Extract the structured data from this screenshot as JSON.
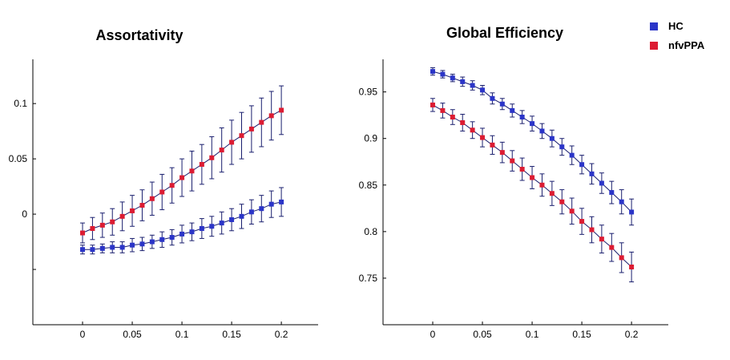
{
  "legend": [
    {
      "label": "HC",
      "color": "#2b35c8"
    },
    {
      "label": "nfvPPA",
      "color": "#dc1c32"
    }
  ],
  "chart_data": [
    {
      "type": "line",
      "title": "Assortativity",
      "xlabel": "",
      "ylabel": "",
      "xlim": [
        -0.05,
        0.237
      ],
      "ylim": [
        -0.1,
        0.14
      ],
      "x_ticks": [
        0,
        0.05,
        0.1,
        0.15,
        0.2
      ],
      "x_tick_labels": [
        "0",
        "0.05",
        "0.1",
        "0.15",
        "0.2"
      ],
      "y_ticks": [
        0.1,
        0.05,
        0,
        -0.05
      ],
      "y_tick_labels": [
        "0.1",
        "0.05",
        "0",
        ""
      ],
      "x": [
        0,
        0.01,
        0.02,
        0.03,
        0.04,
        0.05,
        0.06,
        0.07,
        0.08,
        0.09,
        0.1,
        0.11,
        0.12,
        0.13,
        0.14,
        0.15,
        0.16,
        0.17,
        0.18,
        0.19,
        0.2
      ],
      "series": [
        {
          "name": "nfvPPA",
          "color": "#dc1c32",
          "values": [
            -0.017,
            -0.013,
            -0.01,
            -0.007,
            -0.002,
            0.003,
            0.008,
            0.014,
            0.02,
            0.026,
            0.033,
            0.039,
            0.045,
            0.051,
            0.058,
            0.065,
            0.071,
            0.077,
            0.083,
            0.089,
            0.094
          ],
          "errors": [
            0.009,
            0.01,
            0.011,
            0.012,
            0.013,
            0.014,
            0.014,
            0.015,
            0.016,
            0.016,
            0.017,
            0.018,
            0.018,
            0.019,
            0.02,
            0.02,
            0.021,
            0.021,
            0.022,
            0.022,
            0.022
          ]
        },
        {
          "name": "HC",
          "color": "#2b35c8",
          "values": [
            -0.032,
            -0.032,
            -0.031,
            -0.03,
            -0.03,
            -0.028,
            -0.027,
            -0.025,
            -0.023,
            -0.021,
            -0.018,
            -0.016,
            -0.013,
            -0.011,
            -0.008,
            -0.005,
            -0.002,
            0.002,
            0.005,
            0.009,
            0.011
          ],
          "errors": [
            0.004,
            0.004,
            0.004,
            0.005,
            0.005,
            0.006,
            0.006,
            0.006,
            0.007,
            0.007,
            0.008,
            0.008,
            0.009,
            0.009,
            0.01,
            0.01,
            0.011,
            0.011,
            0.012,
            0.012,
            0.013
          ]
        }
      ]
    },
    {
      "type": "line",
      "title": "Global Efficiency",
      "xlabel": "",
      "ylabel": "",
      "xlim": [
        -0.05,
        0.237
      ],
      "ylim": [
        0.7,
        0.985
      ],
      "x_ticks": [
        0,
        0.05,
        0.1,
        0.15,
        0.2
      ],
      "x_tick_labels": [
        "0",
        "0.05",
        "0.1",
        "0.15",
        "0.2"
      ],
      "y_ticks": [
        0.95,
        0.9,
        0.85,
        0.8,
        0.75
      ],
      "y_tick_labels": [
        "0.95",
        "0.9",
        "0.85",
        "0.8",
        "0.75"
      ],
      "x": [
        0,
        0.01,
        0.02,
        0.03,
        0.04,
        0.05,
        0.06,
        0.07,
        0.08,
        0.09,
        0.1,
        0.11,
        0.12,
        0.13,
        0.14,
        0.15,
        0.16,
        0.17,
        0.18,
        0.19,
        0.2
      ],
      "series": [
        {
          "name": "HC",
          "color": "#2b35c8",
          "values": [
            0.972,
            0.969,
            0.965,
            0.961,
            0.957,
            0.952,
            0.943,
            0.937,
            0.93,
            0.923,
            0.916,
            0.908,
            0.9,
            0.891,
            0.882,
            0.872,
            0.862,
            0.852,
            0.842,
            0.832,
            0.821
          ],
          "errors": [
            0.004,
            0.004,
            0.004,
            0.005,
            0.005,
            0.005,
            0.006,
            0.006,
            0.007,
            0.007,
            0.008,
            0.008,
            0.009,
            0.009,
            0.01,
            0.01,
            0.011,
            0.011,
            0.012,
            0.013,
            0.014
          ]
        },
        {
          "name": "nfvPPA",
          "color": "#dc1c32",
          "values": [
            0.936,
            0.93,
            0.923,
            0.917,
            0.909,
            0.901,
            0.893,
            0.885,
            0.876,
            0.867,
            0.858,
            0.85,
            0.841,
            0.832,
            0.822,
            0.811,
            0.802,
            0.792,
            0.783,
            0.772,
            0.762
          ],
          "errors": [
            0.007,
            0.008,
            0.008,
            0.009,
            0.009,
            0.01,
            0.01,
            0.011,
            0.011,
            0.012,
            0.012,
            0.012,
            0.013,
            0.013,
            0.014,
            0.014,
            0.014,
            0.015,
            0.015,
            0.016,
            0.016
          ]
        }
      ]
    }
  ]
}
